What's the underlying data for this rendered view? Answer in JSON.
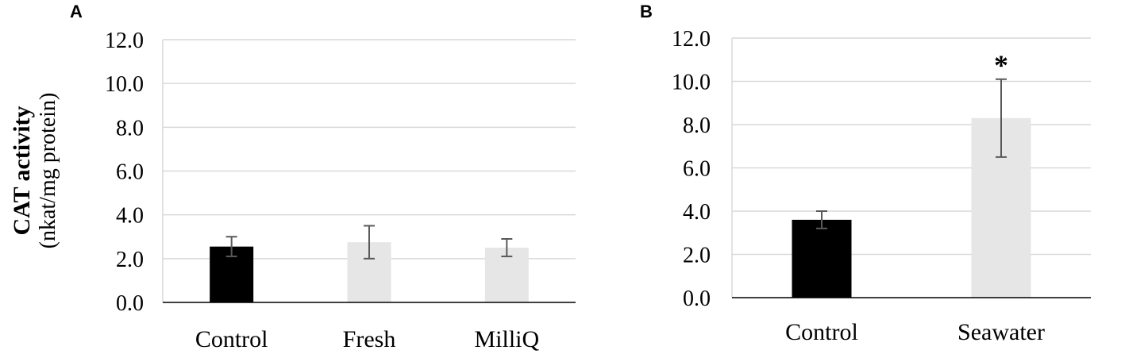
{
  "ylabel": {
    "main": "CAT activity",
    "unit": "(nkat/mg protein)"
  },
  "chart_data": [
    {
      "type": "bar",
      "panel": "A",
      "categories": [
        "Control",
        "Fresh",
        "MilliQ"
      ],
      "values": [
        2.55,
        2.75,
        2.5
      ],
      "errors": [
        0.45,
        0.75,
        0.4
      ],
      "colors": [
        "#000000",
        "#e6e6e6",
        "#e6e6e6"
      ],
      "significance": [
        "",
        "",
        ""
      ],
      "ylim": [
        0,
        12
      ],
      "yticks": [
        "0.0",
        "2.0",
        "4.0",
        "6.0",
        "8.0",
        "10.0",
        "12.0"
      ],
      "grid": true
    },
    {
      "type": "bar",
      "panel": "B",
      "categories": [
        "Control",
        "Seawater"
      ],
      "values": [
        3.6,
        8.3
      ],
      "errors": [
        0.4,
        1.8
      ],
      "colors": [
        "#000000",
        "#e6e6e6"
      ],
      "significance": [
        "",
        "*"
      ],
      "ylim": [
        0,
        12
      ],
      "yticks": [
        "0.0",
        "2.0",
        "4.0",
        "6.0",
        "8.0",
        "10.0",
        "12.0"
      ],
      "grid": true
    }
  ]
}
